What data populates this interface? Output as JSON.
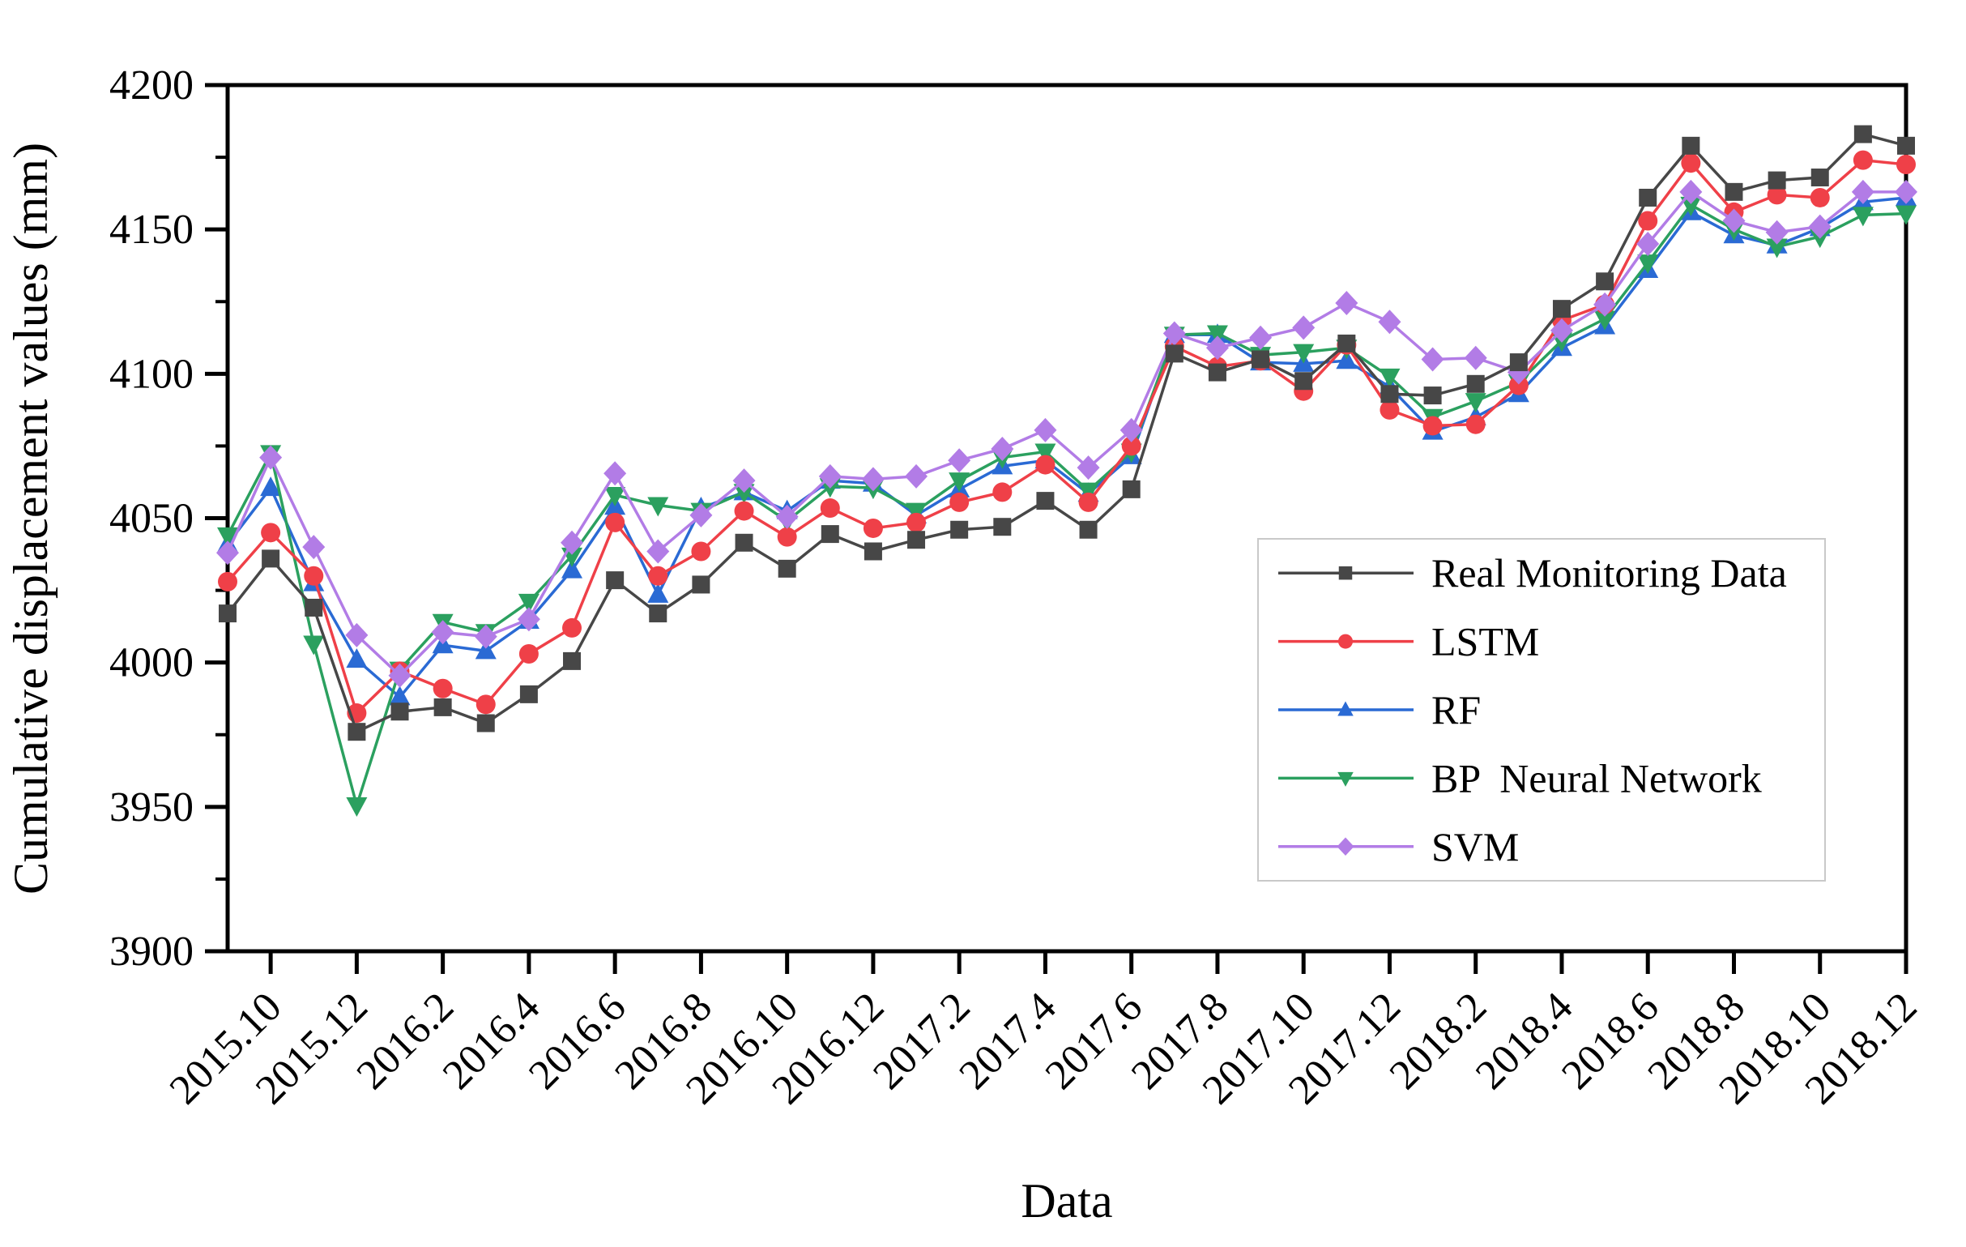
{
  "chart_data": {
    "type": "line",
    "title": "",
    "xlabel": "Data",
    "ylabel": "Cumulative displacement values (mm)",
    "ylim": [
      3900,
      4200
    ],
    "yticks": [
      3900,
      3950,
      4000,
      4050,
      4100,
      4150,
      4200
    ],
    "y_minor_step": 25,
    "grid": "off",
    "legend_position": "right-middle-inside",
    "x": [
      "2015.9",
      "2015.10",
      "2015.11",
      "2015.12",
      "2016.1",
      "2016.2",
      "2016.3",
      "2016.4",
      "2016.5",
      "2016.6",
      "2016.7",
      "2016.8",
      "2016.9",
      "2016.10",
      "2016.11",
      "2016.12",
      "2017.1",
      "2017.2",
      "2017.3",
      "2017.4",
      "2017.5",
      "2017.6",
      "2017.7",
      "2017.8",
      "2017.9",
      "2017.10",
      "2017.11",
      "2017.12",
      "2018.1",
      "2018.2",
      "2018.3",
      "2018.4",
      "2018.5",
      "2018.6",
      "2018.7",
      "2018.8",
      "2018.9",
      "2018.10",
      "2018.11",
      "2018.12"
    ],
    "x_tick_labels": [
      "2015.10",
      "2015.12",
      "2016.2",
      "2016.4",
      "2016.6",
      "2016.8",
      "2016.10",
      "2016.12",
      "2017.2",
      "2017.4",
      "2017.6",
      "2017.8",
      "2017.10",
      "2017.12",
      "2018.2",
      "2018.4",
      "2018.6",
      "2018.8",
      "2018.10",
      "2018.12"
    ],
    "series": [
      {
        "key": "real-monitoring-data",
        "name": "Real Monitoring Data",
        "color": "#474747",
        "marker": "square",
        "values": [
          4017,
          4036,
          4019,
          3976,
          3983,
          3984.5,
          3979,
          3989,
          4000.5,
          4028.5,
          4017,
          4027,
          4041.5,
          4032.5,
          4044.5,
          4038.5,
          4042.5,
          4046,
          4047,
          4056,
          4046,
          4060,
          4107,
          4100.5,
          4105,
          4097.5,
          4110.5,
          4093,
          4092.5,
          4096.5,
          4104,
          4122.5,
          4132,
          4161,
          4179,
          4163,
          4167,
          4168,
          4183,
          4179
        ]
      },
      {
        "key": "lstm",
        "name": "LSTM",
        "color": "#ef4048",
        "marker": "circle",
        "values": [
          4028,
          4045,
          4030,
          3982.5,
          3997,
          3991,
          3985.5,
          4003,
          4012,
          4048.5,
          4030,
          4038.5,
          4052.5,
          4043.5,
          4053.5,
          4046.5,
          4048.5,
          4055.5,
          4059,
          4068.5,
          4055.5,
          4075,
          4109.5,
          4102.5,
          4104.5,
          4094,
          4110,
          4087.5,
          4082,
          4082.5,
          4096,
          4118.5,
          4124,
          4153,
          4173,
          4156,
          4162,
          4161,
          4174,
          4172.5
        ]
      },
      {
        "key": "rf",
        "name": "RF",
        "color": "#2a6ad4",
        "marker": "triangle-up",
        "values": [
          4041,
          4060.5,
          4027.5,
          4001,
          3988,
          4006,
          4004,
          4014.5,
          4032,
          4054,
          4023.5,
          4053.5,
          4059,
          4052.5,
          4063,
          4062,
          4051,
          4060,
          4068,
          4070,
          4058.5,
          4071.5,
          4113.5,
          4113.5,
          4104,
          4103.5,
          4104.5,
          4095.5,
          4080,
          4085,
          4093,
          4109,
          4116.5,
          4136,
          4156,
          4148,
          4144.5,
          4150.5,
          4159.5,
          4161
        ]
      },
      {
        "key": "bp-neural-network",
        "name": "BP  Neural Network",
        "color": "#2ba05f",
        "marker": "triangle-down",
        "values": [
          4044,
          4072.5,
          4006.5,
          3950.5,
          3997.5,
          4014,
          4010.5,
          4021,
          4037,
          4058,
          4054.5,
          4052.5,
          4059,
          4049,
          4061,
          4060.5,
          4052.5,
          4063,
          4071,
          4073,
          4059.5,
          4073,
          4113.5,
          4114,
          4106.5,
          4107.5,
          4109,
          4099,
          4085,
          4090.5,
          4097,
          4111.5,
          4119,
          4138.5,
          4158.5,
          4150,
          4144,
          4147.5,
          4155,
          4155.5
        ]
      },
      {
        "key": "svm",
        "name": "SVM",
        "color": "#b27ce6",
        "marker": "diamond",
        "values": [
          4038,
          4071,
          4040,
          4009.5,
          3995.5,
          4010.5,
          4009,
          4015,
          4041.5,
          4065.5,
          4038.5,
          4051,
          4063,
          4050.5,
          4064.5,
          4063.5,
          4064.5,
          4070,
          4074,
          4080.5,
          4067.5,
          4080.5,
          4114,
          4109,
          4112.5,
          4116,
          4124.5,
          4118,
          4105,
          4105.5,
          4100.5,
          4115,
          4124,
          4145,
          4163,
          4153,
          4149,
          4151,
          4163,
          4163
        ]
      }
    ]
  }
}
